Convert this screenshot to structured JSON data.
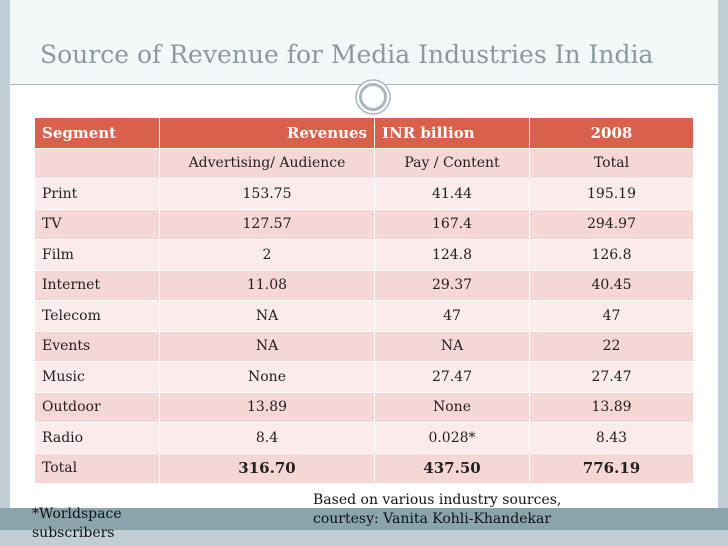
{
  "title": "Source of Revenue for Media Industries In India",
  "table": {
    "headers": [
      "Segment",
      "Revenues",
      "INR billion",
      "2008"
    ],
    "subheaders": [
      "",
      "Advertising/ Audience",
      "Pay / Content",
      "Total"
    ],
    "rows": [
      [
        "Print",
        "153.75",
        "41.44",
        "195.19"
      ],
      [
        "TV",
        "127.57",
        "167.4",
        "294.97"
      ],
      [
        "Film",
        "2",
        "124.8",
        "126.8"
      ],
      [
        "Internet",
        "11.08",
        "29.37",
        "40.45"
      ],
      [
        "Telecom",
        "NA",
        "47",
        "47"
      ],
      [
        "Events",
        "NA",
        "NA",
        "22"
      ],
      [
        "Music",
        "None",
        "27.47",
        "27.47"
      ],
      [
        "Outdoor",
        "13.89",
        "None",
        "13.89"
      ],
      [
        "Radio",
        "8.4",
        "0.028*",
        "8.43"
      ],
      [
        "Total",
        "316.70",
        "437.50",
        "776.19"
      ]
    ]
  },
  "footnote": {
    "line1": "*Worldspace",
    "line2": "subscribers"
  },
  "source_note": {
    "line1": "Based on various industry sources,",
    "line2": "courtesy: Vanita Kohli-Khandekar"
  },
  "colors": {
    "header_bg": "#d9604a",
    "row_odd": "#f5d8d6",
    "row_even": "#fbeceb",
    "frame": "#c2ced5",
    "band": "#8aa4ad",
    "title_text": "#8a9aa2"
  }
}
